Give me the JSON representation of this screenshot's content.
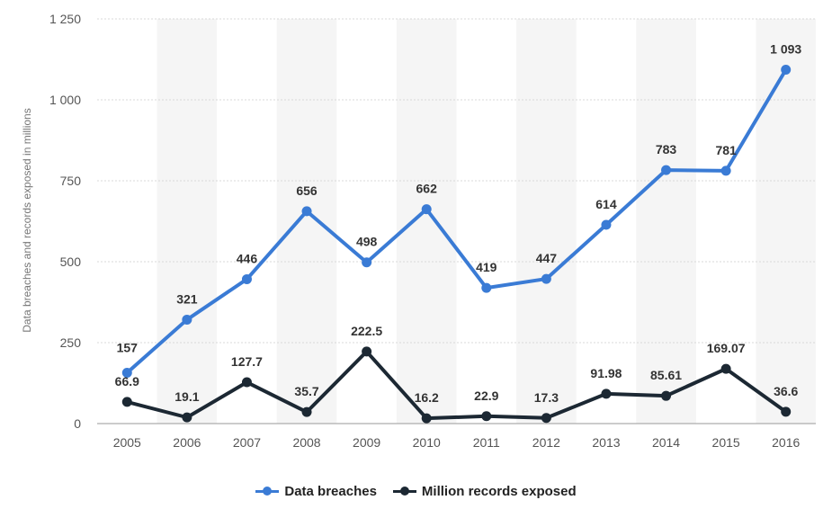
{
  "chart_data": {
    "type": "line",
    "categories": [
      "2005",
      "2006",
      "2007",
      "2008",
      "2009",
      "2010",
      "2011",
      "2012",
      "2013",
      "2014",
      "2015",
      "2016"
    ],
    "series": [
      {
        "name": "Data breaches",
        "color": "#3a7bd5",
        "values": [
          157,
          321,
          446,
          656,
          498,
          662,
          419,
          447,
          614,
          783,
          781,
          1093
        ],
        "labels": [
          "157",
          "321",
          "446",
          "656",
          "498",
          "662",
          "419",
          "447",
          "614",
          "783",
          "781",
          "1 093"
        ]
      },
      {
        "name": "Million records exposed",
        "color": "#1c2833",
        "values": [
          66.9,
          19.1,
          127.7,
          35.7,
          222.5,
          16.2,
          22.9,
          17.3,
          91.98,
          85.61,
          169.07,
          36.6
        ],
        "labels": [
          "66.9",
          "19.1",
          "127.7",
          "35.7",
          "222.5",
          "16.2",
          "22.9",
          "17.3",
          "91.98",
          "85.61",
          "169.07",
          "36.6"
        ]
      }
    ],
    "yticks": [
      0,
      250,
      500,
      750,
      1000,
      1250
    ],
    "ytick_labels": [
      "0",
      "250",
      "500",
      "750",
      "1 000",
      "1 250"
    ],
    "ylim": [
      0,
      1250
    ],
    "ylabel": "Data breaches and records exposed in millions",
    "xlabel": "",
    "title": "",
    "legend_position": "bottom-center",
    "grid": true
  },
  "legend": {
    "items": [
      "Data breaches",
      "Million records exposed"
    ]
  }
}
